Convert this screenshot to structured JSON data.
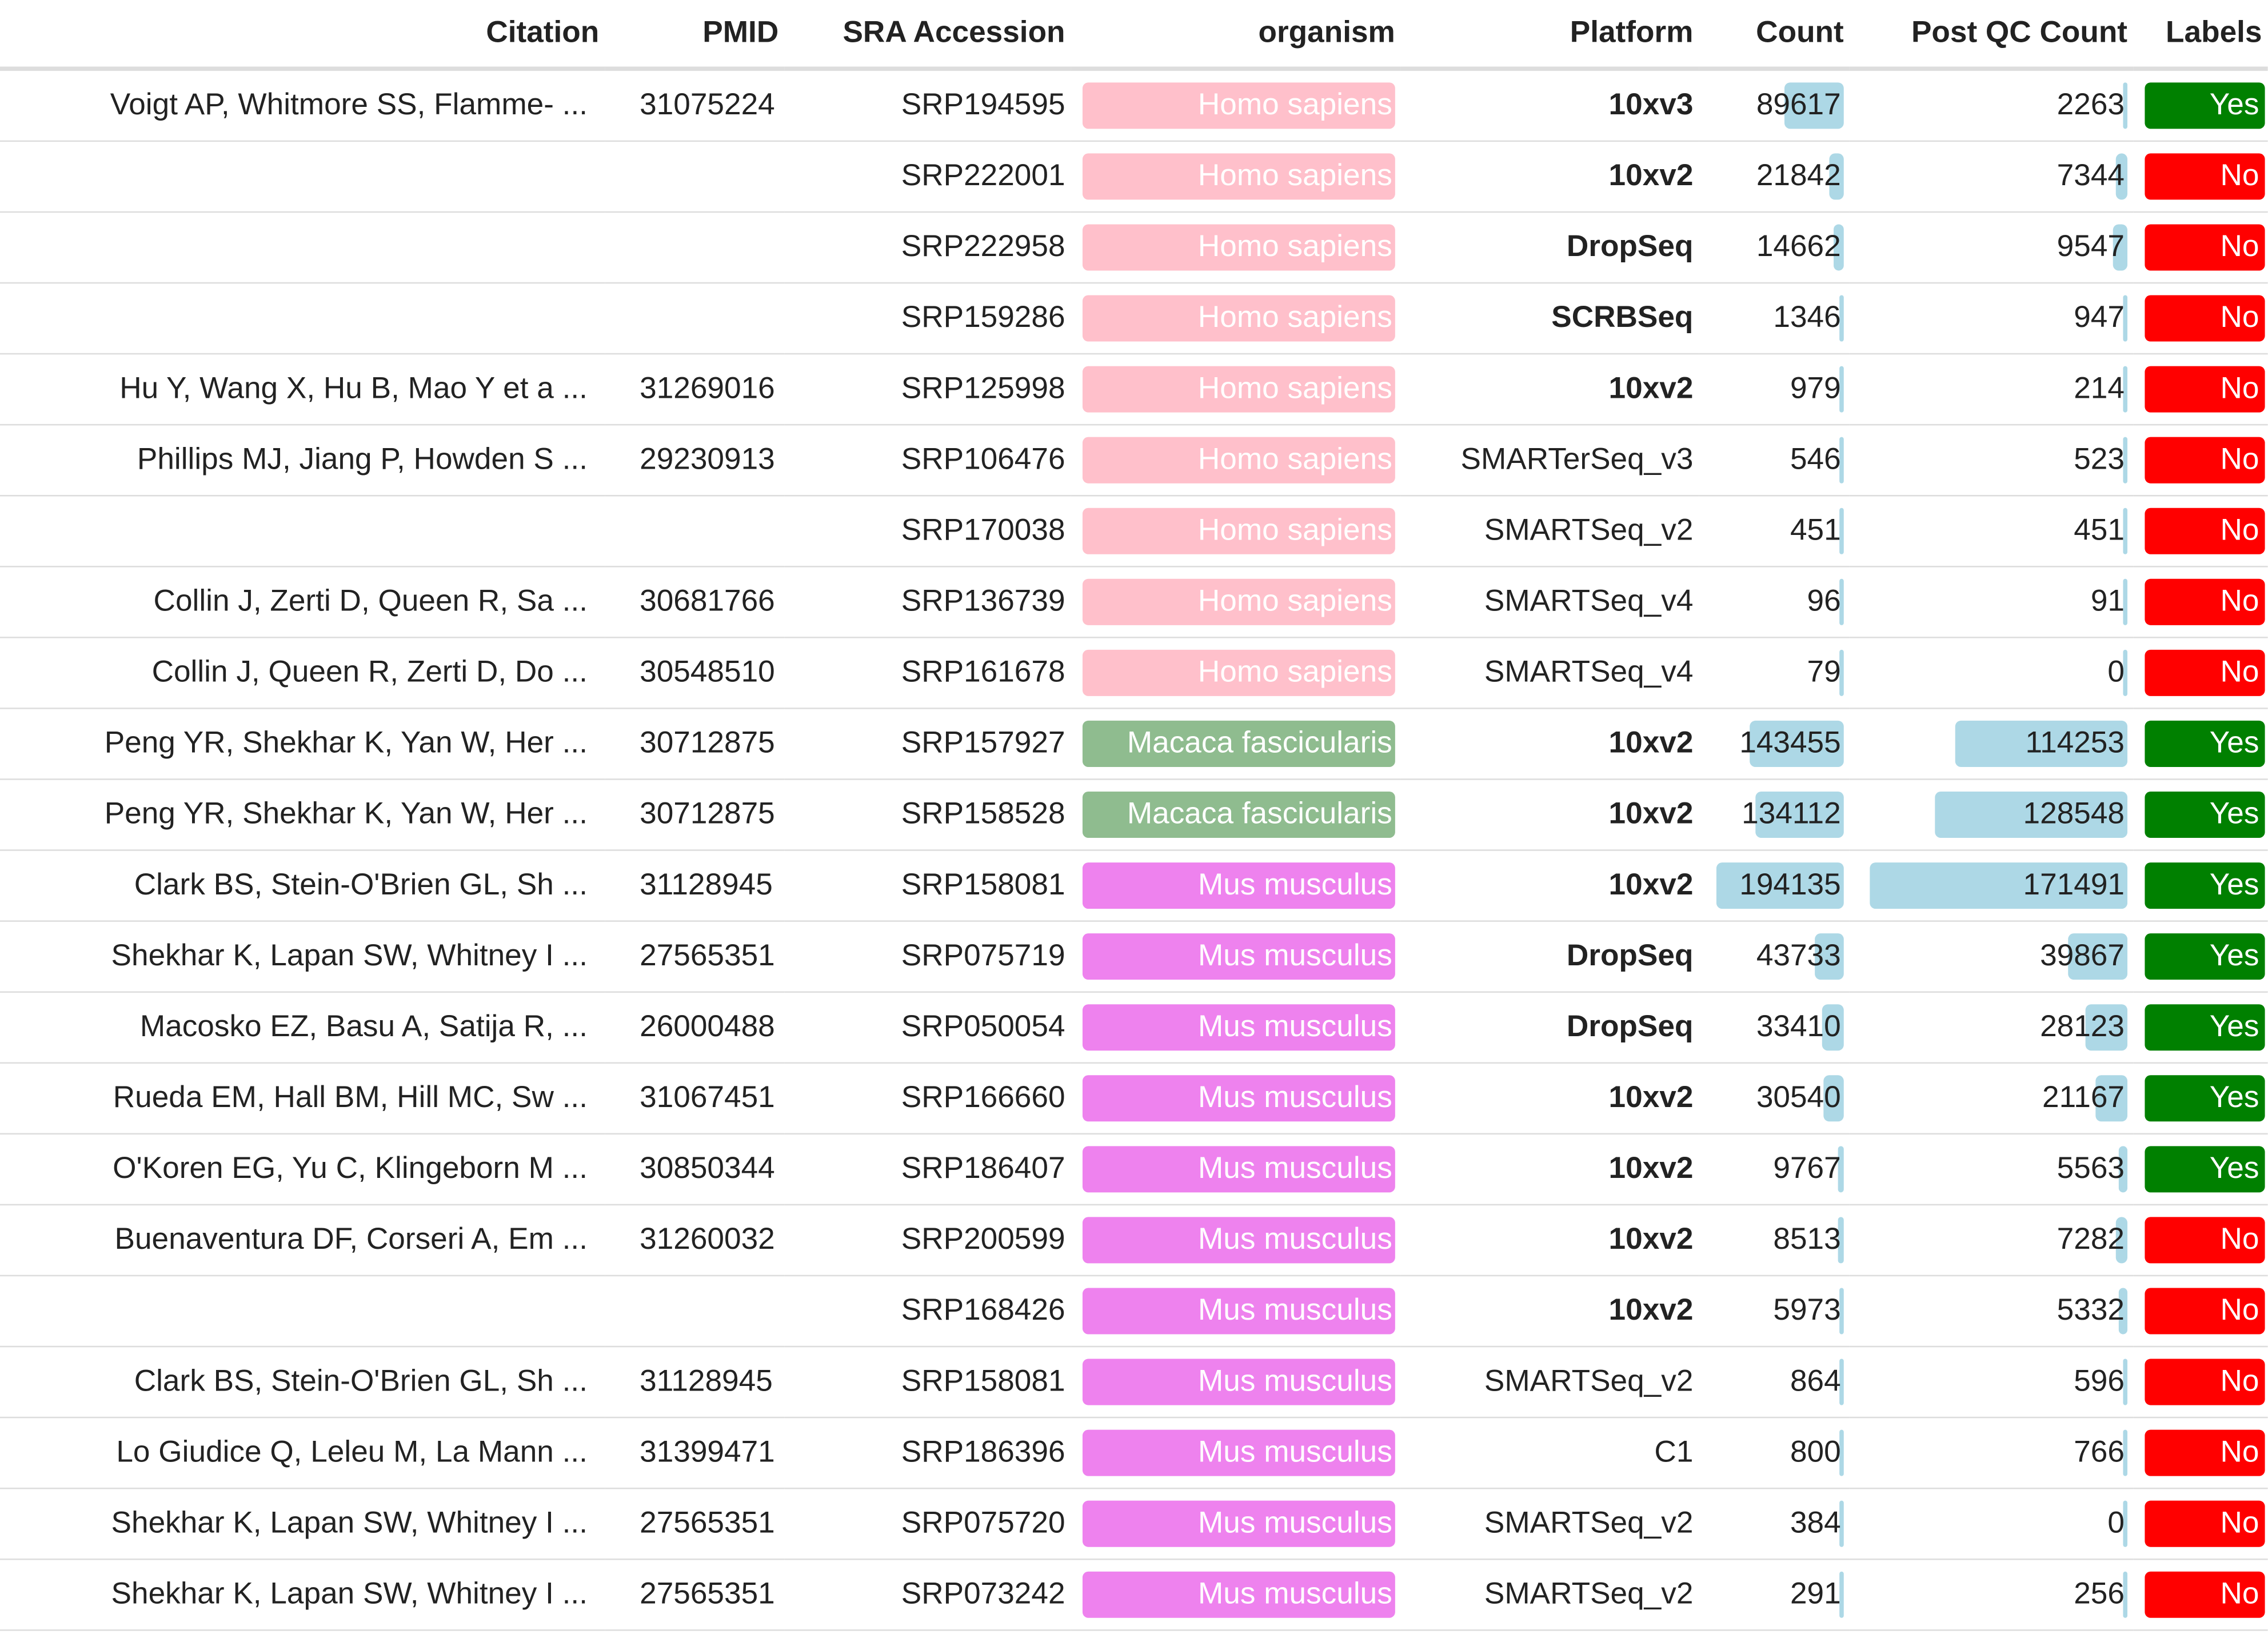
{
  "headers": {
    "citation": "Citation",
    "pmid": "PMID",
    "sra": "SRA Accession",
    "organism": "organism",
    "platform": "Platform",
    "count": "Count",
    "postqc": "Post QC Count",
    "labels": "Labels"
  },
  "colors": {
    "Homo sapiens": "#ffc0cb",
    "Macaca fascicularis": "#8fbc8f",
    "Mus musculus": "#ee82ee",
    "Yes": "#008000",
    "No": "#ff0000",
    "bar": "#add8e6"
  },
  "rows": [
    {
      "citation": "Voigt AP, Whitmore SS, Flamme- ...",
      "pmid": "31075224",
      "sra": "SRP194595",
      "organism": "Homo sapiens",
      "platform": "10xv3",
      "platform_bold": true,
      "count": 89617,
      "postqc": 2263,
      "label": "Yes"
    },
    {
      "citation": "",
      "pmid": "",
      "sra": "SRP222001",
      "organism": "Homo sapiens",
      "platform": "10xv2",
      "platform_bold": true,
      "count": 21842,
      "postqc": 7344,
      "label": "No"
    },
    {
      "citation": "",
      "pmid": "",
      "sra": "SRP222958",
      "organism": "Homo sapiens",
      "platform": "DropSeq",
      "platform_bold": true,
      "count": 14662,
      "postqc": 9547,
      "label": "No"
    },
    {
      "citation": "",
      "pmid": "",
      "sra": "SRP159286",
      "organism": "Homo sapiens",
      "platform": "SCRBSeq",
      "platform_bold": true,
      "count": 1346,
      "postqc": 947,
      "label": "No"
    },
    {
      "citation": "Hu Y, Wang X, Hu B, Mao Y et a ...",
      "pmid": "31269016",
      "sra": "SRP125998",
      "organism": "Homo sapiens",
      "platform": "10xv2",
      "platform_bold": true,
      "count": 979,
      "postqc": 214,
      "label": "No"
    },
    {
      "citation": "Phillips MJ, Jiang P, Howden S ...",
      "pmid": "29230913",
      "sra": "SRP106476",
      "organism": "Homo sapiens",
      "platform": "SMARTerSeq_v3",
      "platform_bold": false,
      "count": 546,
      "postqc": 523,
      "label": "No"
    },
    {
      "citation": "",
      "pmid": "",
      "sra": "SRP170038",
      "organism": "Homo sapiens",
      "platform": "SMARTSeq_v2",
      "platform_bold": false,
      "count": 451,
      "postqc": 451,
      "label": "No"
    },
    {
      "citation": "Collin J, Zerti D, Queen R, Sa ...",
      "pmid": "30681766",
      "sra": "SRP136739",
      "organism": "Homo sapiens",
      "platform": "SMARTSeq_v4",
      "platform_bold": false,
      "count": 96,
      "postqc": 91,
      "label": "No"
    },
    {
      "citation": "Collin J, Queen R, Zerti D, Do ...",
      "pmid": "30548510",
      "sra": "SRP161678",
      "organism": "Homo sapiens",
      "platform": "SMARTSeq_v4",
      "platform_bold": false,
      "count": 79,
      "postqc": 0,
      "label": "No"
    },
    {
      "citation": "Peng YR, Shekhar K, Yan W, Her ...",
      "pmid": "30712875",
      "sra": "SRP157927",
      "organism": "Macaca fascicularis",
      "platform": "10xv2",
      "platform_bold": true,
      "count": 143455,
      "postqc": 114253,
      "label": "Yes"
    },
    {
      "citation": "Peng YR, Shekhar K, Yan W, Her ...",
      "pmid": "30712875",
      "sra": "SRP158528",
      "organism": "Macaca fascicularis",
      "platform": "10xv2",
      "platform_bold": true,
      "count": 134112,
      "postqc": 128548,
      "label": "Yes"
    },
    {
      "citation": "Clark BS, Stein-O'Brien GL, Sh ...",
      "pmid": "31128945",
      "sra": "SRP158081",
      "organism": "Mus musculus",
      "platform": "10xv2",
      "platform_bold": true,
      "count": 194135,
      "postqc": 171491,
      "label": "Yes"
    },
    {
      "citation": "Shekhar K, Lapan SW, Whitney I ...",
      "pmid": "27565351",
      "sra": "SRP075719",
      "organism": "Mus musculus",
      "platform": "DropSeq",
      "platform_bold": true,
      "count": 43733,
      "postqc": 39867,
      "label": "Yes"
    },
    {
      "citation": "Macosko EZ, Basu A, Satija R, ...",
      "pmid": "26000488",
      "sra": "SRP050054",
      "organism": "Mus musculus",
      "platform": "DropSeq",
      "platform_bold": true,
      "count": 33410,
      "postqc": 28123,
      "label": "Yes"
    },
    {
      "citation": "Rueda EM, Hall BM, Hill MC, Sw ...",
      "pmid": "31067451",
      "sra": "SRP166660",
      "organism": "Mus musculus",
      "platform": "10xv2",
      "platform_bold": true,
      "count": 30540,
      "postqc": 21167,
      "label": "Yes"
    },
    {
      "citation": "O'Koren EG, Yu C, Klingeborn M ...",
      "pmid": "30850344",
      "sra": "SRP186407",
      "organism": "Mus musculus",
      "platform": "10xv2",
      "platform_bold": true,
      "count": 9767,
      "postqc": 5563,
      "label": "Yes"
    },
    {
      "citation": "Buenaventura DF, Corseri A, Em ...",
      "pmid": "31260032",
      "sra": "SRP200599",
      "organism": "Mus musculus",
      "platform": "10xv2",
      "platform_bold": true,
      "count": 8513,
      "postqc": 7282,
      "label": "No"
    },
    {
      "citation": "",
      "pmid": "",
      "sra": "SRP168426",
      "organism": "Mus musculus",
      "platform": "10xv2",
      "platform_bold": true,
      "count": 5973,
      "postqc": 5332,
      "label": "No"
    },
    {
      "citation": "Clark BS, Stein-O'Brien GL, Sh ...",
      "pmid": "31128945",
      "sra": "SRP158081",
      "organism": "Mus musculus",
      "platform": "SMARTSeq_v2",
      "platform_bold": false,
      "count": 864,
      "postqc": 596,
      "label": "No"
    },
    {
      "citation": "Lo Giudice Q, Leleu M, La Mann ...",
      "pmid": "31399471",
      "sra": "SRP186396",
      "organism": "Mus musculus",
      "platform": "C1",
      "platform_bold": false,
      "count": 800,
      "postqc": 766,
      "label": "No"
    },
    {
      "citation": "Shekhar K, Lapan SW, Whitney I ...",
      "pmid": "27565351",
      "sra": "SRP075720",
      "organism": "Mus musculus",
      "platform": "SMARTSeq_v2",
      "platform_bold": false,
      "count": 384,
      "postqc": 0,
      "label": "No"
    },
    {
      "citation": "Shekhar K, Lapan SW, Whitney I ...",
      "pmid": "27565351",
      "sra": "SRP073242",
      "organism": "Mus musculus",
      "platform": "SMARTSeq_v2",
      "platform_bold": false,
      "count": 291,
      "postqc": 256,
      "label": "No"
    }
  ]
}
